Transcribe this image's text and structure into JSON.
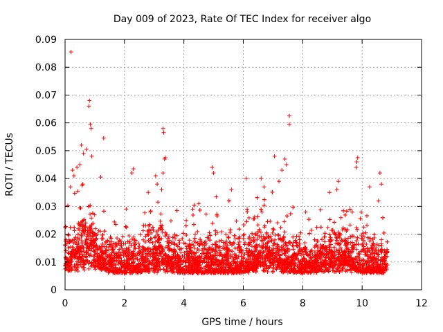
{
  "chart_data": {
    "type": "scatter",
    "title": "Day 009 of 2023, Rate Of TEC Index for receiver algo",
    "xlabel": "GPS time / hours",
    "ylabel": "ROTI / TECUs",
    "xlim": [
      0,
      12
    ],
    "ylim": [
      0,
      0.09
    ],
    "xticks": [
      "0",
      "2",
      "4",
      "6",
      "8",
      "10",
      "12"
    ],
    "yticks": [
      "0",
      "0.01",
      "0.02",
      "0.03",
      "0.04",
      "0.05",
      "0.06",
      "0.07",
      "0.08",
      "0.09"
    ],
    "grid": true,
    "marker": "+",
    "color": "#ff0000",
    "series": [
      {
        "name": "ROTI",
        "points": [
          [
            0.2,
            0.0855
          ],
          [
            0.82,
            0.068
          ],
          [
            0.8,
            0.066
          ],
          [
            0.85,
            0.0595
          ],
          [
            0.88,
            0.058
          ],
          [
            1.3,
            0.0545
          ],
          [
            0.55,
            0.052
          ],
          [
            0.62,
            0.049
          ],
          [
            0.9,
            0.048
          ],
          [
            0.72,
            0.0505
          ],
          [
            0.25,
            0.043
          ],
          [
            0.3,
            0.041
          ],
          [
            0.4,
            0.044
          ],
          [
            0.5,
            0.045
          ],
          [
            0.18,
            0.037
          ],
          [
            0.6,
            0.038
          ],
          [
            1.2,
            0.0405
          ],
          [
            2.3,
            0.0435
          ],
          [
            2.25,
            0.042
          ],
          [
            2.8,
            0.035
          ],
          [
            3.05,
            0.041
          ],
          [
            3.1,
            0.038
          ],
          [
            3.3,
            0.058
          ],
          [
            3.32,
            0.0565
          ],
          [
            3.38,
            0.0475
          ],
          [
            3.35,
            0.047
          ],
          [
            3.3,
            0.042
          ],
          [
            3.25,
            0.036
          ],
          [
            4.3,
            0.029
          ],
          [
            4.5,
            0.031
          ],
          [
            4.95,
            0.044
          ],
          [
            5.0,
            0.042
          ],
          [
            5.6,
            0.036
          ],
          [
            6.1,
            0.04
          ],
          [
            6.6,
            0.04
          ],
          [
            6.7,
            0.037
          ],
          [
            7.2,
            0.039
          ],
          [
            7.3,
            0.043
          ],
          [
            7.05,
            0.048
          ],
          [
            7.4,
            0.047
          ],
          [
            7.45,
            0.045
          ],
          [
            7.55,
            0.0625
          ],
          [
            7.55,
            0.0595
          ],
          [
            8.1,
            0.028
          ],
          [
            8.9,
            0.035
          ],
          [
            9.2,
            0.039
          ],
          [
            9.15,
            0.036
          ],
          [
            9.85,
            0.0475
          ],
          [
            9.82,
            0.046
          ],
          [
            9.8,
            0.044
          ],
          [
            10.25,
            0.037
          ],
          [
            10.6,
            0.042
          ],
          [
            10.65,
            0.038
          ],
          [
            10.55,
            0.032
          ]
        ]
      }
    ]
  }
}
